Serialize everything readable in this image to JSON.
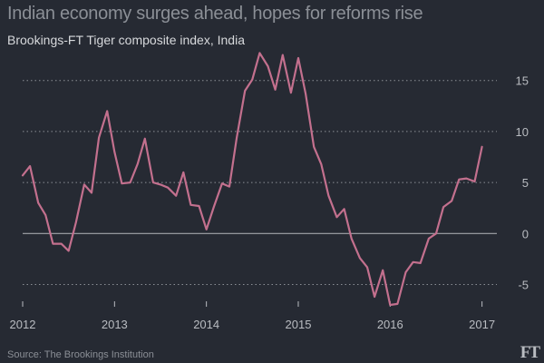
{
  "title": "Indian economy surges ahead, hopes for reforms rise",
  "subtitle": "Brookings-FT Tiger composite index, India",
  "source": "Source: The Brookings Institution",
  "brand": "FT",
  "colors": {
    "background": "#262a33",
    "line": "#c3708e",
    "grid": "#8b8f96",
    "zero_line": "#a3a6ab",
    "text": "#b9bcc1"
  },
  "chart_data": {
    "type": "line",
    "title": "Indian economy surges ahead, hopes for reforms rise",
    "subtitle": "Brookings-FT Tiger composite index, India",
    "xlim": [
      2012,
      2017.28
    ],
    "ylim": [
      -7,
      18
    ],
    "x_ticks": [
      2012,
      2013,
      2014,
      2015,
      2016,
      2017
    ],
    "x_tick_labels": [
      "2012",
      "2013",
      "2014",
      "2015",
      "2016",
      "2017"
    ],
    "y_ticks": [
      15,
      10,
      5,
      0,
      -5
    ],
    "y_tick_labels": [
      "15",
      "10",
      "5",
      "0",
      "-5"
    ],
    "grid": "horizontal dotted",
    "series": [
      {
        "x": [
          2012.0,
          2012.08,
          2012.17,
          2012.25,
          2012.33,
          2012.42,
          2012.5,
          2012.58,
          2012.67,
          2012.75,
          2012.83,
          2012.92,
          2013.0,
          2013.08,
          2013.17,
          2013.25,
          2013.33,
          2013.42,
          2013.5,
          2013.58,
          2013.67,
          2013.75,
          2013.83,
          2013.92,
          2014.0,
          2014.08,
          2014.17,
          2014.25,
          2014.33,
          2014.42,
          2014.5,
          2014.58,
          2014.67,
          2014.75,
          2014.83,
          2014.92,
          2015.0,
          2015.08,
          2015.17,
          2015.25,
          2015.33,
          2015.42,
          2015.5,
          2015.58,
          2015.67,
          2015.75,
          2015.83,
          2015.92,
          2016.0,
          2016.08,
          2016.17,
          2016.25,
          2016.33,
          2016.42,
          2016.5,
          2016.58,
          2016.67,
          2016.75,
          2016.83,
          2016.92,
          2017.0
        ],
        "values": [
          5.7,
          6.6,
          3.0,
          1.8,
          -1.0,
          -1.0,
          -1.7,
          1.1,
          4.8,
          4.0,
          9.4,
          12.0,
          8.0,
          4.9,
          5.0,
          6.8,
          9.3,
          5.0,
          4.8,
          4.5,
          3.7,
          6.0,
          2.8,
          2.7,
          0.4,
          2.6,
          4.9,
          4.6,
          9.4,
          14.0,
          15.1,
          17.7,
          16.4,
          14.1,
          17.5,
          13.8,
          17.2,
          13.7,
          8.5,
          6.8,
          3.7,
          1.6,
          2.4,
          -0.5,
          -2.4,
          -3.3,
          -6.2,
          -3.6,
          -7.0,
          -6.9,
          -3.8,
          -2.8,
          -2.9,
          -0.5,
          0.0,
          2.6,
          3.2,
          5.3,
          5.4,
          5.1,
          8.5
        ]
      }
    ]
  }
}
